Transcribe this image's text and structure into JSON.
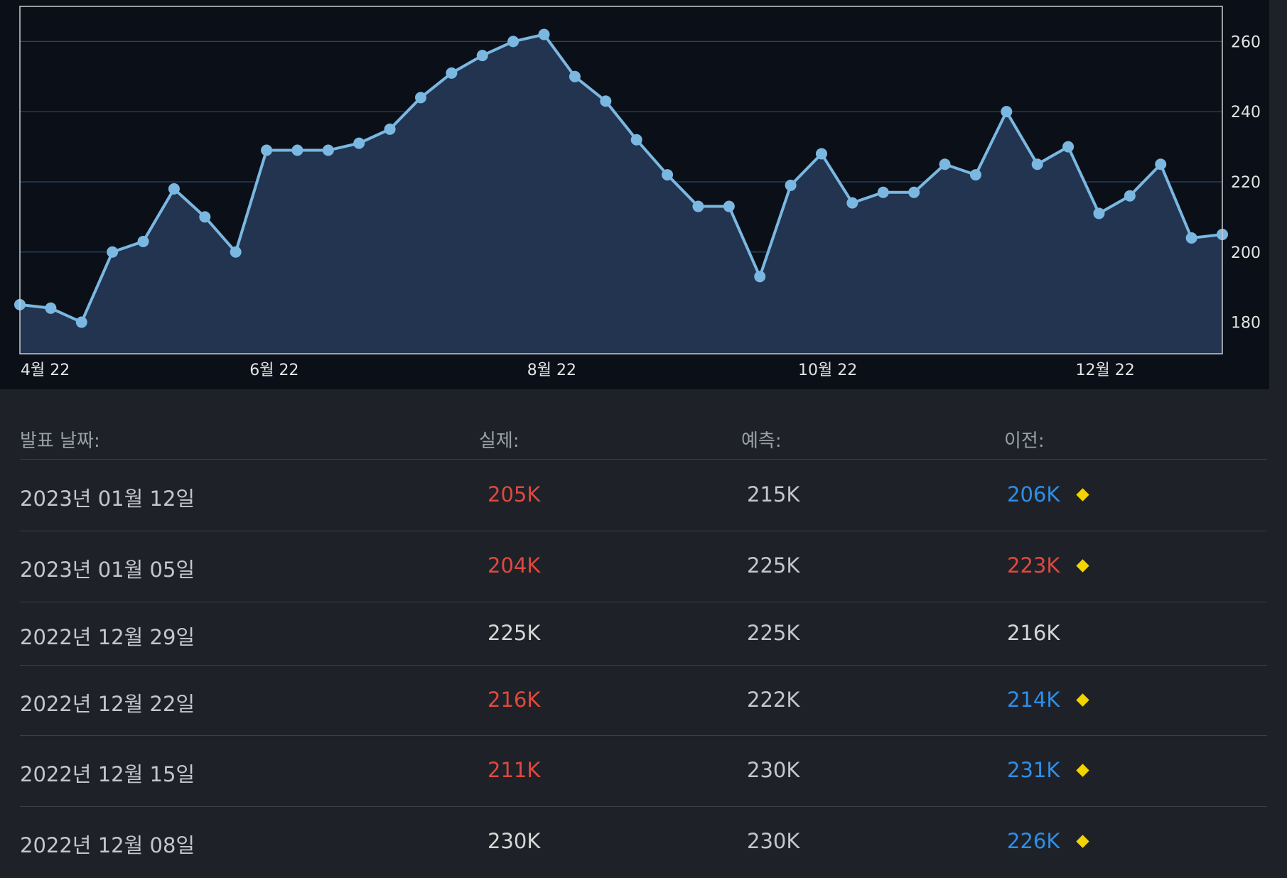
{
  "colors": {
    "negative": "#e0483e",
    "positive": "#2f8ee8",
    "neutral": "#d6d6d6",
    "marker": "#f2d400",
    "line": "#7ab8e2"
  },
  "chart_data": {
    "type": "area",
    "y_ticks": [
      "260",
      "240",
      "220",
      "200",
      "180"
    ],
    "x_ticks": [
      "4월 22",
      "6월 22",
      "8월 22",
      "10월 22",
      "12월 22"
    ],
    "ylim": [
      171,
      270
    ],
    "y_axis_side": "right",
    "grid": true,
    "series": [
      {
        "values": [
          185,
          184,
          180,
          200,
          203,
          218,
          210,
          200,
          229,
          229,
          229,
          231,
          235,
          244,
          251,
          256,
          260,
          262,
          250,
          243,
          232,
          222,
          213,
          213,
          193,
          219,
          228,
          214,
          217,
          217,
          225,
          222,
          240,
          225,
          230,
          211,
          216,
          225,
          204,
          205
        ]
      }
    ]
  },
  "table": {
    "headers": {
      "date": "발표 날짜:",
      "actual": "실제:",
      "forecast": "예측:",
      "previous": "이전:"
    },
    "rows": [
      {
        "date": "2023년 01월 12일",
        "actual": "205K",
        "actual_color": "#e0483e",
        "forecast": "215K",
        "previous": "206K",
        "previous_color": "#2f8ee8",
        "revised": true
      },
      {
        "date": "2023년 01월 05일",
        "actual": "204K",
        "actual_color": "#e0483e",
        "forecast": "225K",
        "previous": "223K",
        "previous_color": "#e0483e",
        "revised": true
      },
      {
        "date": "2022년 12월 29일",
        "actual": "225K",
        "actual_color": "#d6d6d6",
        "forecast": "225K",
        "previous": "216K",
        "previous_color": "#d6d6d6",
        "revised": false
      },
      {
        "date": "2022년 12월 22일",
        "actual": "216K",
        "actual_color": "#e0483e",
        "forecast": "222K",
        "previous": "214K",
        "previous_color": "#2f8ee8",
        "revised": true
      },
      {
        "date": "2022년 12월 15일",
        "actual": "211K",
        "actual_color": "#e0483e",
        "forecast": "230K",
        "previous": "231K",
        "previous_color": "#2f8ee8",
        "revised": true
      },
      {
        "date": "2022년 12월 08일",
        "actual": "230K",
        "actual_color": "#d6d6d6",
        "forecast": "230K",
        "previous": "226K",
        "previous_color": "#2f8ee8",
        "revised": true
      }
    ]
  }
}
